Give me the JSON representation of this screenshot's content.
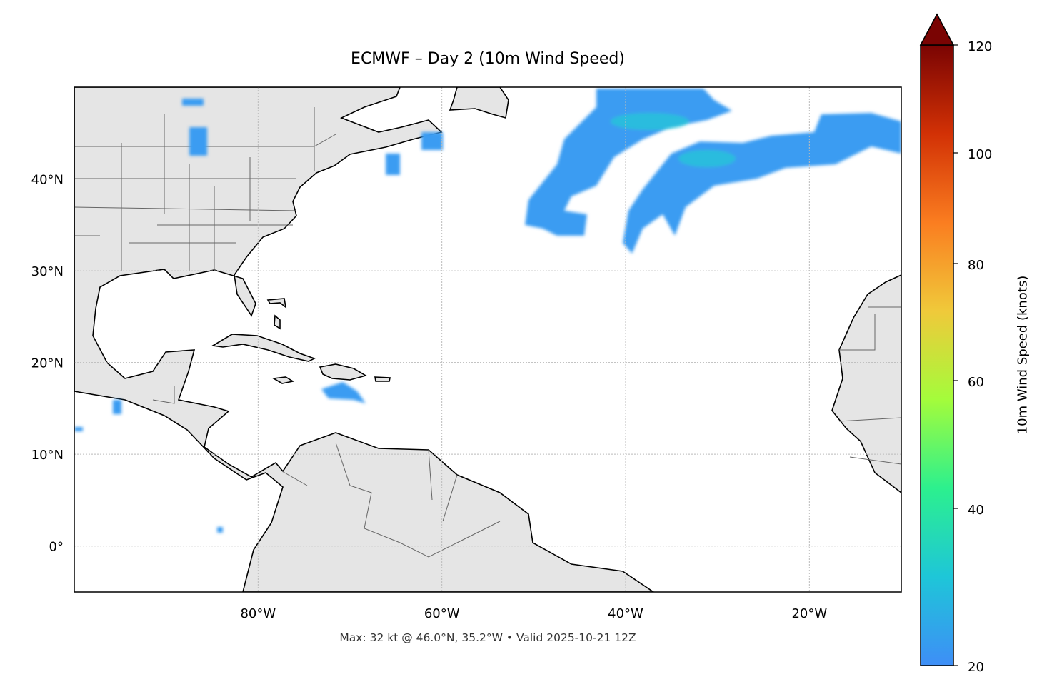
{
  "title": "ECMWF – Day 2 (10m Wind Speed)",
  "caption": "Max: 32 kt @ 46.0°N, 35.2°W • Valid 2025-10-21 12Z",
  "map": {
    "projection": "PlateCarree",
    "lon_range": [
      -100,
      -10
    ],
    "lat_range": [
      -5,
      50
    ],
    "gridlines": "dotted",
    "land_color": "#e5e5e5",
    "ocean_color": "#ffffff",
    "lon_ticks": [
      {
        "value": -80,
        "label": "80°W"
      },
      {
        "value": -60,
        "label": "60°W"
      },
      {
        "value": -40,
        "label": "40°W"
      },
      {
        "value": -20,
        "label": "20°W"
      }
    ],
    "lat_ticks": [
      {
        "value": 40,
        "label": "40°N"
      },
      {
        "value": 30,
        "label": "30°N"
      },
      {
        "value": 20,
        "label": "20°N"
      },
      {
        "value": 10,
        "label": "10°N"
      },
      {
        "value": 0,
        "label": "0°"
      }
    ],
    "max_wind": {
      "value_kt": 32,
      "lat": 46.0,
      "lon": -35.2
    }
  },
  "colorbar": {
    "label": "10m Wind Speed (knots)",
    "range": [
      20,
      120
    ],
    "extend": "max",
    "ticks": [
      "20",
      "40",
      "60",
      "80",
      "100",
      "120"
    ],
    "colors": [
      "#3e8ef7",
      "#1ec6d8",
      "#2cf08e",
      "#a4fc3b",
      "#f0c93a",
      "#fa7d20",
      "#d23105",
      "#7a0403"
    ]
  }
}
